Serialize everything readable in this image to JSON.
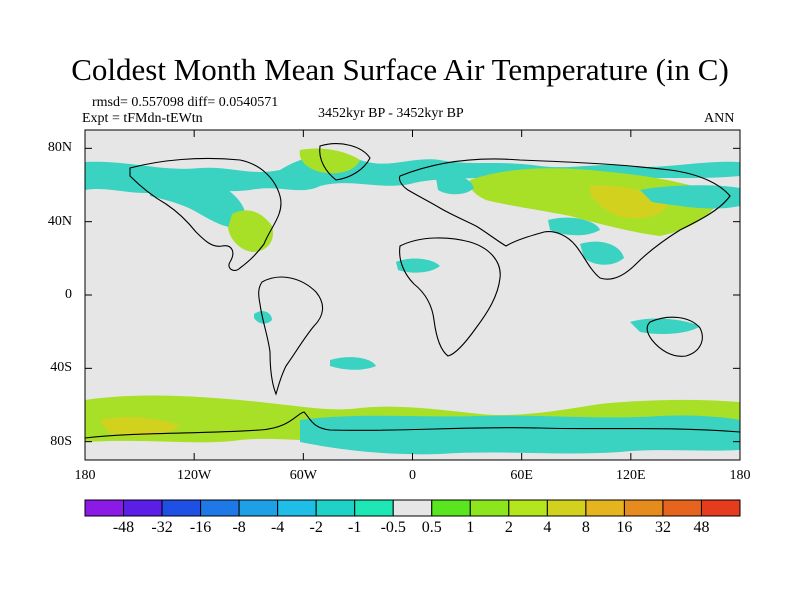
{
  "title": "Coldest Month Mean Surface Air Temperature (in C)",
  "stats": "rmsd= 0.557098 diff= 0.0540571",
  "experiment": "Expt = tFMdn-tEWtn",
  "period": "3452kyr BP - 3452kyr BP",
  "season": "ANN",
  "lat_labels": [
    {
      "lat": 80,
      "label": "80N"
    },
    {
      "lat": 40,
      "label": "40N"
    },
    {
      "lat": 0,
      "label": "0"
    },
    {
      "lat": -40,
      "label": "40S"
    },
    {
      "lat": -80,
      "label": "80S"
    }
  ],
  "lon_labels": [
    {
      "lon": -180,
      "label": "180"
    },
    {
      "lon": -120,
      "label": "120W"
    },
    {
      "lon": -60,
      "label": "60W"
    },
    {
      "lon": 0,
      "label": "0"
    },
    {
      "lon": 60,
      "label": "60E"
    },
    {
      "lon": 120,
      "label": "120E"
    },
    {
      "lon": 180,
      "label": "180"
    }
  ],
  "colorbar": {
    "colors": [
      "#8c1ae6",
      "#5a1ee6",
      "#1e50e6",
      "#1e78e6",
      "#1ea0e6",
      "#1ebee6",
      "#1ed2c8",
      "#1ee6b4",
      "#e6e6e6",
      "#5ae61e",
      "#8ce61e",
      "#b4e61e",
      "#d2d21e",
      "#e6b41e",
      "#e68c1e",
      "#e6641e",
      "#e63c1e"
    ],
    "labels": [
      "-48",
      "-32",
      "-16",
      "-8",
      "-4",
      "-2",
      "-1",
      "-0.5",
      "0.5",
      "1",
      "2",
      "4",
      "8",
      "16",
      "32",
      "48"
    ]
  },
  "colors": {
    "background": "#e6e6e6",
    "cool": "#3ad2c0",
    "light_green": "#a8e028",
    "green": "#8cdc1e",
    "yellow": "#d2d21e",
    "coast": "#000000"
  }
}
